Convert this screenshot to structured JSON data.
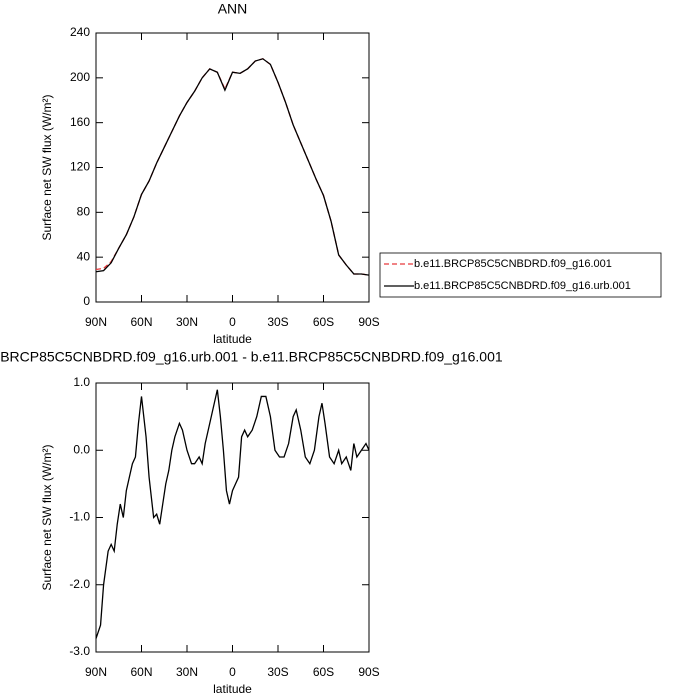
{
  "chart_data": [
    {
      "type": "line",
      "title": "ANN",
      "xlabel": "latitude",
      "ylabel": "Surface net SW flux (W/m²)",
      "x": [
        90,
        85,
        80,
        75,
        70,
        65,
        60,
        55,
        50,
        45,
        40,
        35,
        30,
        25,
        20,
        15,
        10,
        5,
        0,
        -5,
        -10,
        -15,
        -20,
        -25,
        -30,
        -35,
        -40,
        -45,
        -50,
        -55,
        -60,
        -65,
        -70,
        -75,
        -80,
        -85,
        -90
      ],
      "series": [
        {
          "name": "b.e11.BRCP85C5CNBDRD.f09_g16.001",
          "color": "#e8393c",
          "dash": true,
          "values": [
            29,
            30,
            36,
            48,
            60,
            76,
            96,
            108,
            124,
            138,
            152,
            166,
            178,
            188,
            200,
            208,
            205,
            190,
            205,
            204,
            208,
            215,
            217,
            212,
            196,
            178,
            158,
            142,
            126,
            110,
            95,
            72,
            42,
            33,
            25,
            25,
            24
          ]
        },
        {
          "name": "b.e11.BRCP85C5CNBDRD.f09_g16.urb.001",
          "color": "#000000",
          "dash": false,
          "values": [
            27,
            28,
            35,
            48,
            60,
            76,
            96,
            108,
            124,
            138,
            152,
            166,
            178,
            188,
            200,
            208,
            205,
            189,
            205,
            204,
            208,
            215,
            217,
            212,
            196,
            178,
            158,
            142,
            126,
            110,
            95,
            72,
            42,
            33,
            25,
            25,
            24
          ]
        }
      ],
      "xlim": [
        90,
        -90
      ],
      "xticks": [
        {
          "value": 90,
          "label": "90N"
        },
        {
          "value": 60,
          "label": "60N"
        },
        {
          "value": 30,
          "label": "30N"
        },
        0,
        {
          "value": -30,
          "label": "30S"
        },
        {
          "value": -60,
          "label": "60S"
        },
        {
          "value": -90,
          "label": "90S"
        }
      ],
      "ylim": [
        0,
        240
      ],
      "yticks": [
        0,
        40,
        80,
        120,
        160,
        200,
        240
      ],
      "legend": "right"
    },
    {
      "type": "line",
      "title": "b.e11.BRCP85C5CNBDRD.f09_g16.urb.001 - b.e11.BRCP85C5CNBDRD.f09_g16.001",
      "xlabel": "latitude",
      "ylabel": "Surface net SW flux (W/m²)",
      "x": [
        90,
        87,
        85,
        82,
        80,
        78,
        76,
        74,
        72,
        70,
        68,
        66,
        64,
        62,
        60,
        57,
        55,
        52,
        50,
        48,
        46,
        44,
        42,
        40,
        38,
        35,
        33,
        30,
        27,
        25,
        22,
        20,
        18,
        15,
        13,
        10,
        8,
        6,
        4,
        2,
        0,
        -2,
        -4,
        -6,
        -8,
        -10,
        -13,
        -16,
        -19,
        -22,
        -25,
        -28,
        -31,
        -34,
        -37,
        -40,
        -42,
        -45,
        -48,
        -51,
        -54,
        -57,
        -59,
        -61,
        -64,
        -67,
        -70,
        -72,
        -75,
        -78,
        -80,
        -82,
        -85,
        -88,
        -90
      ],
      "series": [
        {
          "color": "#000000",
          "dash": false,
          "values": [
            -2.8,
            -2.6,
            -2.0,
            -1.5,
            -1.4,
            -1.5,
            -1.1,
            -0.8,
            -1.0,
            -0.6,
            -0.4,
            -0.2,
            -0.1,
            0.4,
            0.8,
            0.2,
            -0.4,
            -1.0,
            -0.95,
            -1.1,
            -0.8,
            -0.5,
            -0.3,
            0.0,
            0.2,
            0.4,
            0.3,
            0.0,
            -0.2,
            -0.2,
            -0.1,
            -0.2,
            0.1,
            0.4,
            0.6,
            0.9,
            0.5,
            0.0,
            -0.6,
            -0.8,
            -0.6,
            -0.5,
            -0.4,
            0.2,
            0.3,
            0.2,
            0.3,
            0.5,
            0.8,
            0.8,
            0.5,
            0.0,
            -0.1,
            -0.1,
            0.1,
            0.5,
            0.6,
            0.3,
            -0.1,
            -0.2,
            0.0,
            0.5,
            0.7,
            0.4,
            -0.1,
            -0.2,
            0.0,
            -0.2,
            -0.1,
            -0.3,
            0.1,
            -0.1,
            0.0,
            0.1,
            0.0
          ]
        }
      ],
      "xlim": [
        90,
        -90
      ],
      "xticks": [
        {
          "value": 90,
          "label": "90N"
        },
        {
          "value": 60,
          "label": "60N"
        },
        {
          "value": 30,
          "label": "30N"
        },
        0,
        {
          "value": -30,
          "label": "30S"
        },
        {
          "value": -60,
          "label": "60S"
        },
        {
          "value": -90,
          "label": "90S"
        }
      ],
      "ylim": [
        -3,
        1
      ],
      "yticks": [
        {
          "value": -3,
          "label": "-3.0"
        },
        {
          "value": -2,
          "label": "-2.0"
        },
        {
          "value": -1,
          "label": "-1.0"
        },
        {
          "value": 0,
          "label": "0.0"
        },
        {
          "value": 1,
          "label": "1.0"
        }
      ]
    }
  ]
}
